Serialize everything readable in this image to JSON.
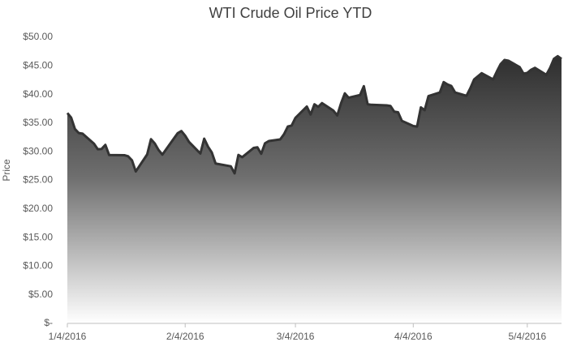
{
  "chart_data": {
    "type": "area",
    "title": "WTI Crude Oil Price YTD",
    "y_label": "Price",
    "x": [
      "1/4/2016",
      "1/5/2016",
      "1/6/2016",
      "1/7/2016",
      "1/8/2016",
      "1/11/2016",
      "1/12/2016",
      "1/13/2016",
      "1/14/2016",
      "1/15/2016",
      "1/19/2016",
      "1/20/2016",
      "1/21/2016",
      "1/22/2016",
      "1/25/2016",
      "1/26/2016",
      "1/27/2016",
      "1/28/2016",
      "1/29/2016",
      "2/1/2016",
      "2/2/2016",
      "2/3/2016",
      "2/4/2016",
      "2/5/2016",
      "2/8/2016",
      "2/9/2016",
      "2/10/2016",
      "2/11/2016",
      "2/12/2016",
      "2/16/2016",
      "2/17/2016",
      "2/18/2016",
      "2/19/2016",
      "2/22/2016",
      "2/23/2016",
      "2/24/2016",
      "2/25/2016",
      "2/26/2016",
      "2/29/2016",
      "3/1/2016",
      "3/2/2016",
      "3/3/2016",
      "3/4/2016",
      "3/7/2016",
      "3/8/2016",
      "3/9/2016",
      "3/10/2016",
      "3/11/2016",
      "3/14/2016",
      "3/15/2016",
      "3/16/2016",
      "3/17/2016",
      "3/18/2016",
      "3/21/2016",
      "3/22/2016",
      "3/23/2016",
      "3/24/2016",
      "3/28/2016",
      "3/29/2016",
      "3/30/2016",
      "3/31/2016",
      "4/1/2016",
      "4/4/2016",
      "4/5/2016",
      "4/6/2016",
      "4/7/2016",
      "4/8/2016",
      "4/11/2016",
      "4/12/2016",
      "4/13/2016",
      "4/14/2016",
      "4/15/2016",
      "4/18/2016",
      "4/19/2016",
      "4/20/2016",
      "4/21/2016",
      "4/22/2016",
      "4/25/2016",
      "4/26/2016",
      "4/27/2016",
      "4/28/2016",
      "4/29/2016",
      "5/2/2016",
      "5/3/2016",
      "5/4/2016",
      "5/5/2016",
      "5/6/2016",
      "5/9/2016",
      "5/10/2016",
      "5/11/2016",
      "5/12/2016",
      "5/13/2016"
    ],
    "series": [
      {
        "name": "WTI",
        "color": "#333333",
        "values": [
          36.76,
          35.97,
          33.97,
          33.27,
          33.16,
          31.41,
          30.44,
          30.48,
          31.2,
          29.42,
          29.4,
          29.2,
          28.5,
          26.55,
          29.53,
          32.19,
          31.45,
          30.3,
          29.5,
          32.3,
          33.22,
          33.62,
          32.8,
          31.72,
          29.69,
          32.28,
          30.89,
          29.88,
          27.94,
          27.45,
          26.21,
          29.44,
          29.05,
          30.66,
          30.77,
          29.64,
          31.48,
          31.87,
          32.15,
          33.07,
          34.4,
          34.57,
          35.92,
          37.9,
          36.5,
          38.29,
          37.84,
          38.5,
          37.18,
          36.34,
          38.46,
          40.2,
          39.44,
          39.91,
          41.45,
          38.3,
          38.2,
          38.1,
          38.0,
          37.0,
          36.9,
          35.4,
          34.5,
          34.4,
          37.75,
          37.26,
          39.72,
          40.36,
          42.17,
          41.76,
          41.5,
          40.36,
          39.78,
          41.08,
          42.63,
          43.18,
          43.73,
          42.64,
          44.04,
          45.33,
          46.03,
          45.92,
          44.78,
          43.65,
          43.78,
          44.32,
          44.66,
          43.44,
          44.66,
          46.23,
          46.7,
          46.21
        ]
      }
    ],
    "xlim": [
      "1/4/2016",
      "5/13/2016"
    ],
    "xticks": [
      "1/4/2016",
      "2/4/2016",
      "3/4/2016",
      "4/4/2016",
      "5/4/2016"
    ],
    "ylim": [
      0,
      50
    ],
    "yticks": [
      {
        "value": 0,
        "label": "$-"
      },
      {
        "value": 5,
        "label": "$5.00"
      },
      {
        "value": 10,
        "label": "$10.00"
      },
      {
        "value": 15,
        "label": "$15.00"
      },
      {
        "value": 20,
        "label": "$20.00"
      },
      {
        "value": 25,
        "label": "$25.00"
      },
      {
        "value": 30,
        "label": "$30.00"
      },
      {
        "value": 35,
        "label": "$35.00"
      },
      {
        "value": 40,
        "label": "$40.00"
      },
      {
        "value": 45,
        "label": "$45.00"
      },
      {
        "value": 50,
        "label": "$50.00"
      }
    ],
    "grid": false
  }
}
